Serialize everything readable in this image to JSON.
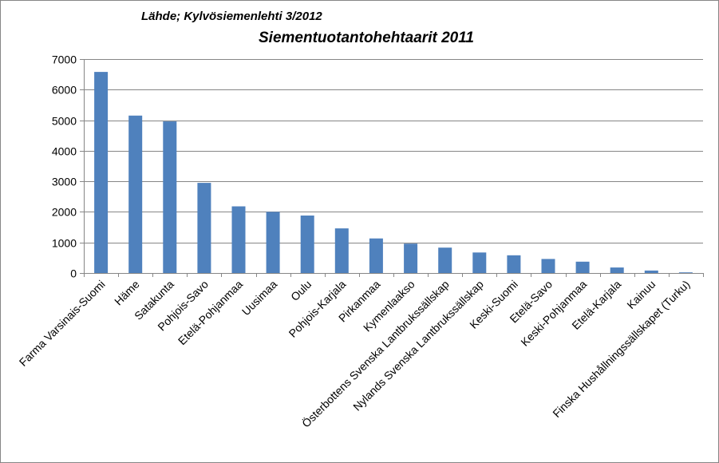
{
  "source_note": "Lähde; Kylvösiemenlehti 3/2012",
  "colors": {
    "bar": "#4f81bd",
    "grid": "#868686",
    "axis": "#868686"
  },
  "chart_data": {
    "type": "bar",
    "title": "Siementuotantohehtaarit 2011",
    "xlabel": "",
    "ylabel": "",
    "ylim": [
      0,
      7000
    ],
    "yticks": [
      0,
      1000,
      2000,
      3000,
      4000,
      5000,
      6000,
      7000
    ],
    "grid": true,
    "legend": "none",
    "categories": [
      "Farma Varsinais-Suomi",
      "Häme",
      "Satakunta",
      "Pohjois-Savo",
      "Etelä-Pohjanmaa",
      "Uusimaa",
      "Oulu",
      "Pohjois-Karjala",
      "Pirkanmaa",
      "Kymenlaakso",
      "Österbottens Svenska Lantbrukssällskap",
      "Nylands Svenska Lantbrukssällskap",
      "Keski-Suomi",
      "Etelä-Savo",
      "Keski-Pohjanmaa",
      "Etelä-Karjala",
      "Kainuu",
      "Finska Hushållningssällskapet (Turku)"
    ],
    "values": [
      6580,
      5150,
      4960,
      2950,
      2180,
      2000,
      1880,
      1460,
      1130,
      960,
      830,
      670,
      580,
      460,
      370,
      180,
      80,
      20
    ]
  }
}
